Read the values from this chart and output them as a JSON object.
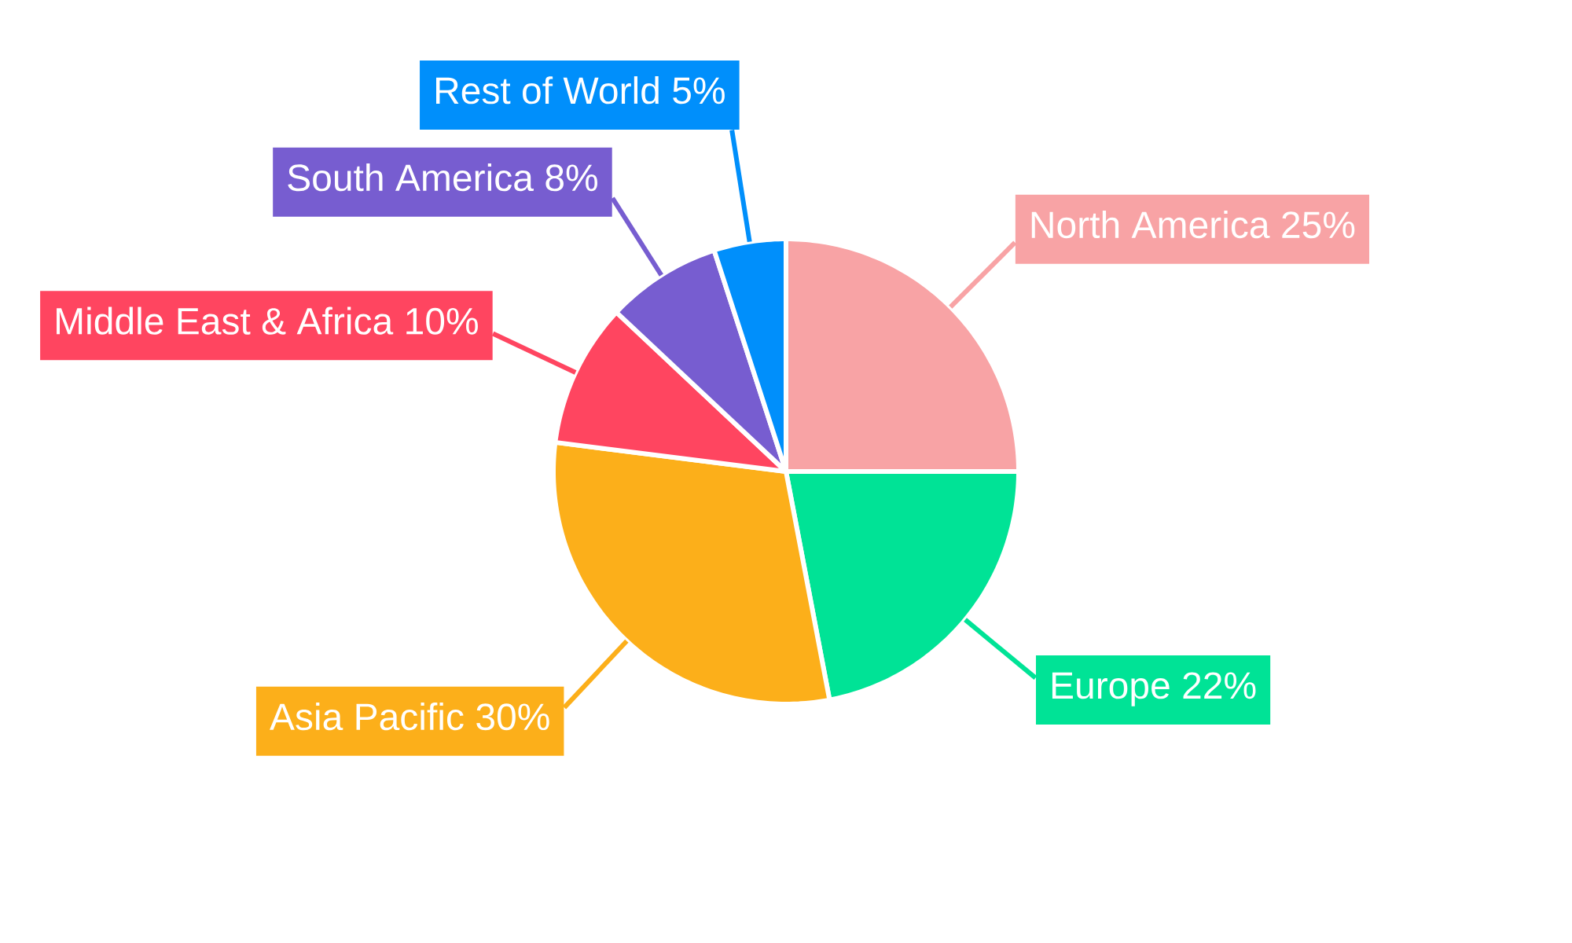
{
  "chart_data": {
    "type": "pie",
    "categories": [
      "North America",
      "Europe",
      "Asia Pacific",
      "Middle East & Africa",
      "South America",
      "Rest of World"
    ],
    "values": [
      25,
      22,
      30,
      10,
      8,
      5
    ],
    "colors": [
      "#f8a3a5",
      "#00e396",
      "#fcaf1a",
      "#ff4560",
      "#775dd0",
      "#008ffb"
    ],
    "value_labels": [
      "25%",
      "22%",
      "30%",
      "10%",
      "8%",
      "5%"
    ]
  }
}
